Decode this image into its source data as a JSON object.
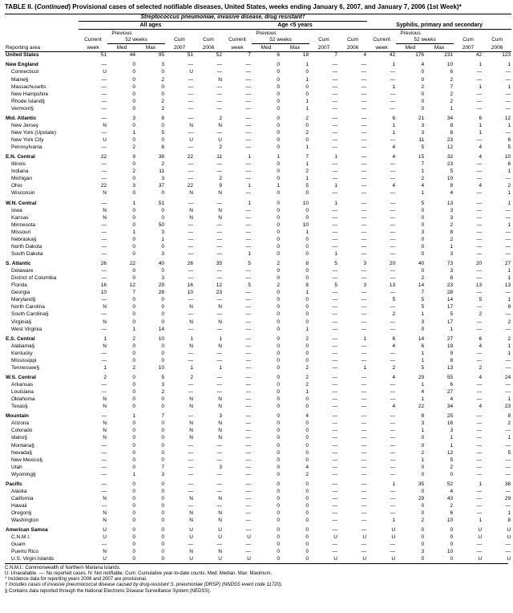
{
  "title_prefix": "TABLE II. (",
  "title_ital": "Continued",
  "title_rest": ") Provisional cases of selected notifiable diseases, United States, weeks ending January 6, 2007, and January 7, 2006 (1st Week)*",
  "group1": "Streptococcus pneumoniae, invasive disease, drug resistant†",
  "sub1a": "All ages",
  "sub1b": "Age <5 years",
  "group2": "Syphilis, primary and secondary",
  "prev": "Previous",
  "weeks52": "52 weeks",
  "h_area": "Reporting area",
  "h_cur": "Current week",
  "h_med": "Med",
  "h_max": "Max",
  "h_cum07": "Cum 2007",
  "h_cum06": "Cum 2006",
  "rows": [
    {
      "t": "r",
      "n": "United States",
      "c": [
        "51",
        "44",
        "95",
        "51",
        "52",
        "7",
        "6",
        "18",
        "7",
        "4",
        "42",
        "176",
        "231",
        "42",
        "123"
      ]
    },
    {
      "t": "r",
      "n": "New England",
      "c": [
        "—",
        "0",
        "3",
        "—",
        "—",
        "—",
        "0",
        "1",
        "—",
        "—",
        "1",
        "4",
        "10",
        "1",
        "1"
      ]
    },
    {
      "t": "s",
      "n": "Connecticut",
      "c": [
        "U",
        "0",
        "0",
        "U",
        "—",
        "—",
        "0",
        "0",
        "—",
        "—",
        "—",
        "0",
        "6",
        "—",
        "—"
      ]
    },
    {
      "t": "s",
      "n": "Maine§",
      "c": [
        "—",
        "0",
        "2",
        "—",
        "N",
        "—",
        "0",
        "1",
        "—",
        "—",
        "—",
        "0",
        "2",
        "—",
        "—"
      ]
    },
    {
      "t": "s",
      "n": "Massachusetts",
      "c": [
        "—",
        "0",
        "0",
        "—",
        "—",
        "—",
        "0",
        "0",
        "—",
        "—",
        "1",
        "2",
        "7",
        "1",
        "1"
      ]
    },
    {
      "t": "s",
      "n": "New Hampshire",
      "c": [
        "—",
        "0",
        "0",
        "—",
        "—",
        "—",
        "0",
        "0",
        "—",
        "—",
        "—",
        "0",
        "2",
        "—",
        "—"
      ]
    },
    {
      "t": "s",
      "n": "Rhode Island§",
      "c": [
        "—",
        "0",
        "2",
        "—",
        "—",
        "—",
        "0",
        "1",
        "—",
        "—",
        "—",
        "0",
        "2",
        "—",
        "—"
      ]
    },
    {
      "t": "s",
      "n": "Vermont§",
      "c": [
        "—",
        "0",
        "2",
        "—",
        "—",
        "—",
        "0",
        "1",
        "—",
        "—",
        "—",
        "0",
        "1",
        "—",
        "—"
      ]
    },
    {
      "t": "r",
      "n": "Mid. Atlantic",
      "c": [
        "—",
        "3",
        "8",
        "—",
        "2",
        "—",
        "0",
        "2",
        "—",
        "—",
        "6",
        "21",
        "34",
        "6",
        "12"
      ]
    },
    {
      "t": "s",
      "n": "New Jersey",
      "c": [
        "N",
        "0",
        "0",
        "N",
        "N",
        "—",
        "0",
        "0",
        "—",
        "—",
        "1",
        "3",
        "8",
        "1",
        "1"
      ]
    },
    {
      "t": "s",
      "n": "New York (Upstate)",
      "c": [
        "—",
        "1",
        "5",
        "—",
        "—",
        "—",
        "0",
        "2",
        "—",
        "—",
        "1",
        "3",
        "8",
        "1",
        "—"
      ]
    },
    {
      "t": "s",
      "n": "New York City",
      "c": [
        "U",
        "0",
        "0",
        "U",
        "U",
        "—",
        "0",
        "0",
        "—",
        "—",
        "—",
        "11",
        "23",
        "—",
        "6"
      ]
    },
    {
      "t": "s",
      "n": "Pennsylvania",
      "c": [
        "—",
        "2",
        "8",
        "—",
        "2",
        "—",
        "0",
        "1",
        "—",
        "—",
        "4",
        "5",
        "12",
        "4",
        "5"
      ]
    },
    {
      "t": "r",
      "n": "E.N. Central",
      "c": [
        "22",
        "9",
        "38",
        "22",
        "11",
        "1",
        "1",
        "7",
        "1",
        "—",
        "4",
        "15",
        "32",
        "4",
        "10"
      ]
    },
    {
      "t": "s",
      "n": "Illinois",
      "c": [
        "—",
        "0",
        "2",
        "—",
        "—",
        "—",
        "0",
        "1",
        "—",
        "—",
        "—",
        "7",
        "23",
        "—",
        "6"
      ]
    },
    {
      "t": "s",
      "n": "Indiana",
      "c": [
        "—",
        "2",
        "11",
        "—",
        "—",
        "—",
        "0",
        "2",
        "—",
        "—",
        "—",
        "1",
        "5",
        "—",
        "1"
      ]
    },
    {
      "t": "s",
      "n": "Michigan",
      "c": [
        "—",
        "0",
        "3",
        "—",
        "2",
        "—",
        "0",
        "1",
        "—",
        "—",
        "—",
        "2",
        "10",
        "—",
        "—"
      ]
    },
    {
      "t": "s",
      "n": "Ohio",
      "c": [
        "22",
        "3",
        "37",
        "22",
        "9",
        "1",
        "1",
        "5",
        "1",
        "—",
        "4",
        "4",
        "8",
        "4",
        "2"
      ]
    },
    {
      "t": "s",
      "n": "Wisconsin",
      "c": [
        "N",
        "0",
        "0",
        "N",
        "N",
        "—",
        "0",
        "0",
        "—",
        "—",
        "—",
        "1",
        "4",
        "—",
        "1"
      ]
    },
    {
      "t": "r",
      "n": "W.N. Central",
      "c": [
        "—",
        "1",
        "51",
        "—",
        "—",
        "1",
        "0",
        "10",
        "1",
        "—",
        "—",
        "5",
        "13",
        "—",
        "1"
      ]
    },
    {
      "t": "s",
      "n": "Iowa",
      "c": [
        "N",
        "0",
        "0",
        "N",
        "N",
        "—",
        "0",
        "0",
        "—",
        "—",
        "—",
        "0",
        "3",
        "—",
        "—"
      ]
    },
    {
      "t": "s",
      "n": "Kansas",
      "c": [
        "N",
        "0",
        "0",
        "N",
        "N",
        "—",
        "0",
        "0",
        "—",
        "—",
        "—",
        "0",
        "3",
        "—",
        "—"
      ]
    },
    {
      "t": "s",
      "n": "Minnesota",
      "c": [
        "—",
        "0",
        "50",
        "—",
        "—",
        "—",
        "0",
        "10",
        "—",
        "—",
        "—",
        "0",
        "2",
        "—",
        "1"
      ]
    },
    {
      "t": "s",
      "n": "Missouri",
      "c": [
        "—",
        "1",
        "3",
        "—",
        "—",
        "—",
        "0",
        "1",
        "—",
        "—",
        "—",
        "3",
        "8",
        "—",
        "—"
      ]
    },
    {
      "t": "s",
      "n": "Nebraska§",
      "c": [
        "—",
        "0",
        "1",
        "—",
        "—",
        "—",
        "0",
        "0",
        "—",
        "—",
        "—",
        "0",
        "2",
        "—",
        "—"
      ]
    },
    {
      "t": "s",
      "n": "North Dakota",
      "c": [
        "—",
        "0",
        "0",
        "—",
        "—",
        "—",
        "0",
        "0",
        "—",
        "—",
        "—",
        "0",
        "1",
        "—",
        "—"
      ]
    },
    {
      "t": "s",
      "n": "South Dakota",
      "c": [
        "—",
        "0",
        "3",
        "—",
        "—",
        "1",
        "0",
        "0",
        "1",
        "—",
        "—",
        "0",
        "3",
        "—",
        "—"
      ]
    },
    {
      "t": "r",
      "n": "S. Atlantic",
      "c": [
        "26",
        "22",
        "40",
        "26",
        "35",
        "5",
        "2",
        "8",
        "5",
        "3",
        "20",
        "40",
        "73",
        "20",
        "27"
      ]
    },
    {
      "t": "s",
      "n": "Delaware",
      "c": [
        "—",
        "0",
        "0",
        "—",
        "—",
        "—",
        "0",
        "0",
        "—",
        "—",
        "—",
        "0",
        "3",
        "—",
        "1"
      ]
    },
    {
      "t": "s",
      "n": "District of Columbia",
      "c": [
        "—",
        "0",
        "3",
        "—",
        "—",
        "—",
        "0",
        "0",
        "—",
        "—",
        "—",
        "2",
        "8",
        "—",
        "1"
      ]
    },
    {
      "t": "s",
      "n": "Florida",
      "c": [
        "16",
        "12",
        "29",
        "16",
        "12",
        "5",
        "2",
        "8",
        "5",
        "3",
        "13",
        "14",
        "23",
        "13",
        "13"
      ]
    },
    {
      "t": "s",
      "n": "Georgia",
      "c": [
        "10",
        "7",
        "28",
        "10",
        "23",
        "—",
        "0",
        "1",
        "—",
        "—",
        "—",
        "7",
        "28",
        "—",
        "—"
      ]
    },
    {
      "t": "s",
      "n": "Maryland§",
      "c": [
        "—",
        "0",
        "0",
        "—",
        "—",
        "—",
        "0",
        "0",
        "—",
        "—",
        "5",
        "5",
        "14",
        "5",
        "1"
      ]
    },
    {
      "t": "s",
      "n": "North Carolina",
      "c": [
        "N",
        "0",
        "0",
        "N",
        "N",
        "—",
        "0",
        "0",
        "—",
        "—",
        "—",
        "5",
        "17",
        "—",
        "9"
      ]
    },
    {
      "t": "s",
      "n": "South Carolina§",
      "c": [
        "—",
        "0",
        "0",
        "—",
        "—",
        "—",
        "0",
        "0",
        "—",
        "—",
        "2",
        "1",
        "5",
        "2",
        "—"
      ]
    },
    {
      "t": "s",
      "n": "Virginia§",
      "c": [
        "N",
        "0",
        "0",
        "N",
        "N",
        "—",
        "0",
        "0",
        "—",
        "—",
        "—",
        "3",
        "17",
        "—",
        "2"
      ]
    },
    {
      "t": "s",
      "n": "West Virginia",
      "c": [
        "—",
        "1",
        "14",
        "—",
        "—",
        "—",
        "0",
        "1",
        "—",
        "—",
        "—",
        "0",
        "1",
        "—",
        "—"
      ]
    },
    {
      "t": "r",
      "n": "E.S. Central",
      "c": [
        "1",
        "2",
        "10",
        "1",
        "1",
        "—",
        "0",
        "2",
        "—",
        "1",
        "6",
        "14",
        "27",
        "6",
        "2"
      ]
    },
    {
      "t": "s",
      "n": "Alabama§",
      "c": [
        "N",
        "0",
        "0",
        "N",
        "N",
        "—",
        "0",
        "0",
        "—",
        "—",
        "4",
        "6",
        "19",
        "4",
        "1"
      ]
    },
    {
      "t": "s",
      "n": "Kentucky",
      "c": [
        "—",
        "0",
        "0",
        "—",
        "—",
        "—",
        "0",
        "0",
        "—",
        "—",
        "—",
        "1",
        "9",
        "—",
        "1"
      ]
    },
    {
      "t": "s",
      "n": "Mississippi",
      "c": [
        "—",
        "0",
        "0",
        "—",
        "—",
        "—",
        "0",
        "0",
        "—",
        "—",
        "—",
        "1",
        "8",
        "—",
        "—"
      ]
    },
    {
      "t": "s",
      "n": "Tennessee§",
      "c": [
        "1",
        "2",
        "10",
        "1",
        "1",
        "—",
        "0",
        "2",
        "—",
        "1",
        "2",
        "5",
        "13",
        "2",
        "—"
      ]
    },
    {
      "t": "r",
      "n": "W.S. Central",
      "c": [
        "2",
        "0",
        "5",
        "2",
        "—",
        "—",
        "0",
        "2",
        "—",
        "—",
        "4",
        "29",
        "55",
        "4",
        "24"
      ]
    },
    {
      "t": "s",
      "n": "Arkansas",
      "c": [
        "—",
        "0",
        "3",
        "—",
        "—",
        "—",
        "0",
        "2",
        "—",
        "—",
        "—",
        "1",
        "6",
        "—",
        "—"
      ]
    },
    {
      "t": "s",
      "n": "Louisiana",
      "c": [
        "—",
        "0",
        "2",
        "—",
        "—",
        "—",
        "0",
        "1",
        "—",
        "—",
        "—",
        "4",
        "27",
        "—",
        "—"
      ]
    },
    {
      "t": "s",
      "n": "Oklahoma",
      "c": [
        "N",
        "0",
        "0",
        "N",
        "N",
        "—",
        "0",
        "0",
        "—",
        "—",
        "—",
        "1",
        "4",
        "—",
        "1"
      ]
    },
    {
      "t": "s",
      "n": "Texas§",
      "c": [
        "N",
        "0",
        "0",
        "N",
        "N",
        "—",
        "0",
        "0",
        "—",
        "—",
        "4",
        "22",
        "34",
        "4",
        "23"
      ]
    },
    {
      "t": "r",
      "n": "Mountain",
      "c": [
        "—",
        "1",
        "7",
        "—",
        "3",
        "—",
        "0",
        "4",
        "—",
        "—",
        "—",
        "8",
        "25",
        "—",
        "8"
      ]
    },
    {
      "t": "s",
      "n": "Arizona",
      "c": [
        "N",
        "0",
        "0",
        "N",
        "N",
        "—",
        "0",
        "0",
        "—",
        "—",
        "—",
        "3",
        "16",
        "—",
        "2"
      ]
    },
    {
      "t": "s",
      "n": "Colorado",
      "c": [
        "N",
        "0",
        "0",
        "N",
        "N",
        "—",
        "0",
        "0",
        "—",
        "—",
        "—",
        "1",
        "3",
        "—",
        "—"
      ]
    },
    {
      "t": "s",
      "n": "Idaho§",
      "c": [
        "N",
        "0",
        "0",
        "N",
        "N",
        "—",
        "0",
        "0",
        "—",
        "—",
        "—",
        "0",
        "1",
        "—",
        "1"
      ]
    },
    {
      "t": "s",
      "n": "Montana§",
      "c": [
        "—",
        "0",
        "0",
        "—",
        "—",
        "—",
        "0",
        "0",
        "—",
        "—",
        "—",
        "0",
        "1",
        "—",
        "—"
      ]
    },
    {
      "t": "s",
      "n": "Nevada§",
      "c": [
        "—",
        "0",
        "0",
        "—",
        "—",
        "—",
        "0",
        "0",
        "—",
        "—",
        "—",
        "2",
        "12",
        "—",
        "5"
      ]
    },
    {
      "t": "s",
      "n": "New Mexico§",
      "c": [
        "—",
        "0",
        "0",
        "—",
        "—",
        "—",
        "0",
        "0",
        "—",
        "—",
        "—",
        "1",
        "5",
        "—",
        "—"
      ]
    },
    {
      "t": "s",
      "n": "Utah",
      "c": [
        "—",
        "0",
        "7",
        "—",
        "3",
        "—",
        "0",
        "4",
        "—",
        "—",
        "—",
        "0",
        "2",
        "—",
        "—"
      ]
    },
    {
      "t": "s",
      "n": "Wyoming§",
      "c": [
        "—",
        "1",
        "3",
        "—",
        "—",
        "—",
        "0",
        "2",
        "—",
        "—",
        "—",
        "0",
        "0",
        "—",
        "—"
      ]
    },
    {
      "t": "r",
      "n": "Pacific",
      "c": [
        "—",
        "0",
        "0",
        "—",
        "—",
        "—",
        "0",
        "0",
        "—",
        "—",
        "1",
        "35",
        "52",
        "1",
        "38"
      ]
    },
    {
      "t": "s",
      "n": "Alaska",
      "c": [
        "—",
        "0",
        "0",
        "—",
        "—",
        "—",
        "0",
        "0",
        "—",
        "—",
        "—",
        "0",
        "4",
        "—",
        "—"
      ]
    },
    {
      "t": "s",
      "n": "California",
      "c": [
        "N",
        "0",
        "0",
        "N",
        "N",
        "—",
        "0",
        "0",
        "—",
        "—",
        "—",
        "29",
        "43",
        "—",
        "29"
      ]
    },
    {
      "t": "s",
      "n": "Hawaii",
      "c": [
        "—",
        "0",
        "0",
        "—",
        "—",
        "—",
        "0",
        "0",
        "—",
        "—",
        "—",
        "0",
        "2",
        "—",
        "—"
      ]
    },
    {
      "t": "s",
      "n": "Oregon§",
      "c": [
        "N",
        "0",
        "0",
        "N",
        "N",
        "—",
        "0",
        "0",
        "—",
        "—",
        "—",
        "0",
        "6",
        "—",
        "1"
      ]
    },
    {
      "t": "s",
      "n": "Washington",
      "c": [
        "N",
        "0",
        "0",
        "N",
        "N",
        "—",
        "0",
        "0",
        "—",
        "—",
        "1",
        "2",
        "10",
        "1",
        "8"
      ]
    },
    {
      "t": "r",
      "n": "American Samoa",
      "c": [
        "U",
        "0",
        "0",
        "U",
        "U",
        "—",
        "0",
        "0",
        "—",
        "—",
        "U",
        "0",
        "0",
        "U",
        "U"
      ]
    },
    {
      "t": "s",
      "n": "C.N.M.I.",
      "c": [
        "U",
        "0",
        "0",
        "U",
        "U",
        "U",
        "0",
        "0",
        "U",
        "U",
        "U",
        "0",
        "0",
        "U",
        "U"
      ]
    },
    {
      "t": "s",
      "n": "Guam",
      "c": [
        "—",
        "0",
        "0",
        "—",
        "—",
        "—",
        "0",
        "0",
        "—",
        "—",
        "—",
        "0",
        "0",
        "—",
        "—"
      ]
    },
    {
      "t": "s",
      "n": "Puerto Rico",
      "c": [
        "N",
        "0",
        "0",
        "N",
        "N",
        "—",
        "0",
        "0",
        "—",
        "—",
        "—",
        "3",
        "10",
        "—",
        "—"
      ]
    },
    {
      "t": "s",
      "n": "U.S. Virgin Islands",
      "c": [
        "U",
        "0",
        "0",
        "U",
        "U",
        "U",
        "0",
        "0",
        "U",
        "U",
        "U",
        "0",
        "0",
        "U",
        "U"
      ]
    }
  ],
  "foot1": "C.N.M.I.: Commonwealth of Northern Mariana Islands.",
  "foot2": "U: Unavailable.      —: No reported cases.      N: Not notifiable.      Cum: Cumulative year-to-date counts.      Med: Median.      Max: Maximum.",
  "foot3": "* Incidence data for reporting years 2006 and 2007 are provisional.",
  "foot4": "† Includes cases of invasive pneumococcal disease caused by drug-resistant S. pneumoniae (DRSP) (NNDSS event code 11720).",
  "foot5": "§ Contains data reported through the National Electronic Disease Surveillance System (NEDSS).",
  "colors": {
    "bg": "#ffffff",
    "fg": "#000000"
  }
}
